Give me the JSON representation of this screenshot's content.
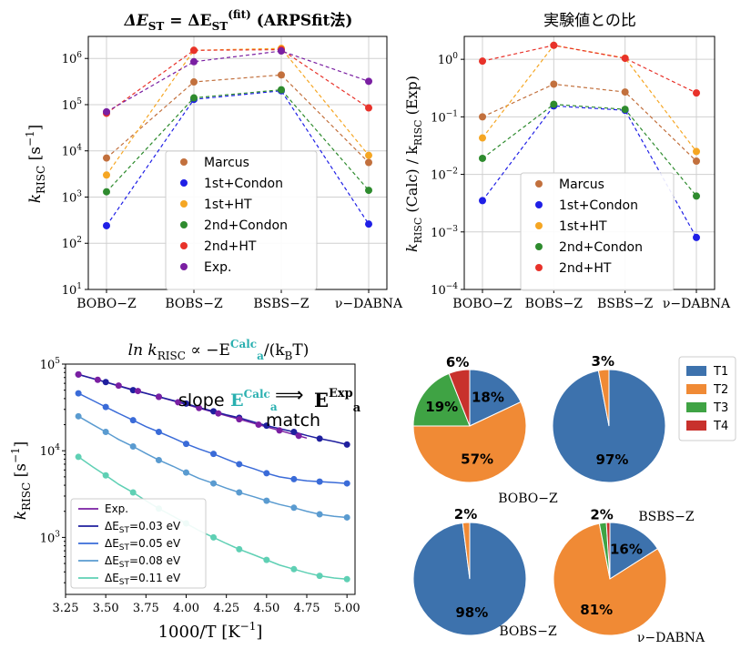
{
  "colors": {
    "Marcus": "#c2703d",
    "1st+Condon": "#1f1fe6",
    "1st+HT": "#f5a623",
    "2nd+Condon": "#2e8b2e",
    "2nd+HT": "#e8322a",
    "Exp.": "#7a1fa2",
    "T1": "#3d72ad",
    "T2": "#f08a35",
    "T3": "#3fa344",
    "T4": "#c8312c",
    "dE003": "#1f1f9e",
    "dE005": "#3a6bd8",
    "dE008": "#5a9bd0",
    "dE011": "#5fd0b4",
    "annot_slope": "#8a33e0",
    "annot_calc": "#2ab0b0",
    "annot_exp": "#e03030"
  },
  "chart_data": [
    {
      "type": "line",
      "title": {
        "prefix": "ΔE",
        "sub": "ST",
        "mid": " = ΔE",
        "sub2": "ST",
        "sup2": "(fit)",
        "suffix": " (ARPSfit法)"
      },
      "ylabel": {
        "main": "k",
        "sub": "RISC",
        "unit": " [s",
        "unit_sup": "−1",
        "unit_end": "]"
      },
      "yscale": "log",
      "ylim": [
        10,
        3000000
      ],
      "yticks": [
        {
          "v": 10,
          "b": "10",
          "e": "1"
        },
        {
          "v": 100,
          "b": "10",
          "e": "2"
        },
        {
          "v": 1000,
          "b": "10",
          "e": "3"
        },
        {
          "v": 10000,
          "b": "10",
          "e": "4"
        },
        {
          "v": 100000,
          "b": "10",
          "e": "5"
        },
        {
          "v": 1000000,
          "b": "10",
          "e": "6"
        }
      ],
      "categories": [
        "BOBO−Z",
        "BOBS−Z",
        "BSBS−Z",
        "ν−DABNA"
      ],
      "grid": true,
      "legend_position": "center",
      "series": [
        {
          "name": "Marcus",
          "values": [
            7000,
            310000,
            440000,
            5600
          ]
        },
        {
          "name": "1st+Condon",
          "values": [
            240,
            130000,
            200000,
            260
          ]
        },
        {
          "name": "1st+HT",
          "values": [
            3000,
            1500000,
            1650000,
            8000
          ]
        },
        {
          "name": "2nd+Condon",
          "values": [
            1300,
            140000,
            210000,
            1400
          ]
        },
        {
          "name": "2nd+HT",
          "values": [
            65000,
            1500000,
            1550000,
            85000
          ]
        },
        {
          "name": "Exp.",
          "values": [
            70000,
            850000,
            1450000,
            320000
          ]
        }
      ]
    },
    {
      "type": "line",
      "title": "実験値との比",
      "ylabel": {
        "main": "k",
        "sub": "RISC",
        "mid": " (Calc) / k",
        "sub2": "RISC",
        "end": " (Exp)"
      },
      "yscale": "log",
      "ylim": [
        0.0001,
        2.5
      ],
      "yticks": [
        {
          "v": 0.0001,
          "b": "10",
          "e": "−4"
        },
        {
          "v": 0.001,
          "b": "10",
          "e": "−3"
        },
        {
          "v": 0.01,
          "b": "10",
          "e": "−2"
        },
        {
          "v": 0.1,
          "b": "10",
          "e": "−1"
        },
        {
          "v": 1,
          "b": "10",
          "e": "0"
        }
      ],
      "categories": [
        "BOBO−Z",
        "BOBS−Z",
        "BSBS−Z",
        "ν−DABNA"
      ],
      "grid": true,
      "legend_position": "lower center",
      "series": [
        {
          "name": "Marcus",
          "values": [
            0.1,
            0.37,
            0.27,
            0.017
          ]
        },
        {
          "name": "1st+Condon",
          "values": [
            0.0035,
            0.155,
            0.13,
            0.0008
          ]
        },
        {
          "name": "1st+HT",
          "values": [
            0.043,
            1.75,
            1.05,
            0.025
          ]
        },
        {
          "name": "2nd+Condon",
          "values": [
            0.019,
            0.165,
            0.135,
            0.0042
          ]
        },
        {
          "name": "2nd+HT",
          "values": [
            0.93,
            1.75,
            1.04,
            0.26
          ]
        }
      ]
    },
    {
      "type": "line",
      "title": {
        "pre": "ln k",
        "sub": "RISC",
        "mid": " ∝ −E",
        "sup": "Calc",
        "sub2": "a",
        "post": "/(k",
        "sub3": "B",
        "end": "T)"
      },
      "xlabel": {
        "main": "1000/T [K",
        "sup": "−1",
        "end": "]"
      },
      "ylabel": {
        "main": "k",
        "sub": "RISC",
        "unit": " [s",
        "unit_sup": "−1",
        "unit_end": "]"
      },
      "yscale": "log",
      "xlim": [
        3.25,
        5.05
      ],
      "ylim": [
        220,
        100000
      ],
      "xticks": [
        "3.25",
        "3.50",
        "3.75",
        "4.00",
        "4.25",
        "4.50",
        "4.75",
        "5.00"
      ],
      "yticks": [
        {
          "v": 1000,
          "b": "10",
          "e": "3"
        },
        {
          "v": 10000,
          "b": "10",
          "e": "4"
        },
        {
          "v": 100000,
          "b": "10",
          "e": "5"
        }
      ],
      "legend_position": "lower left",
      "annotation": {
        "slope": "slope",
        "E": "E",
        "sup": "Calc",
        "sub": "a",
        "arrow": "⟹",
        "match": "match",
        "E2": "E",
        "sup2": "Exp",
        "sub2": "a"
      },
      "series": [
        {
          "name": "Exp.",
          "x": [
            3.33,
            4.75
          ],
          "y": [
            76000,
            14000
          ]
        },
        {
          "name": "ΔE",
          "sub": "ST",
          "value": "=0.03 eV",
          "x": [
            3.33,
            3.42,
            3.5,
            3.58,
            3.67,
            3.75,
            3.83,
            3.92,
            4.0,
            4.08,
            4.17,
            4.25,
            4.33,
            4.42,
            4.5,
            4.58,
            4.67,
            4.75,
            4.83,
            4.92,
            5.0
          ],
          "y": [
            76000,
            68000,
            62000,
            56000,
            50000,
            46000,
            42000,
            38000,
            35000,
            31500,
            28500,
            26000,
            24000,
            21500,
            19500,
            18000,
            16500,
            15000,
            13800,
            12800,
            11800
          ]
        },
        {
          "name": "ΔE",
          "sub": "ST",
          "value": "=0.05 eV",
          "x": [
            3.33,
            3.42,
            3.5,
            3.58,
            3.67,
            3.75,
            3.83,
            3.92,
            4.0,
            4.08,
            4.17,
            4.25,
            4.33,
            4.42,
            4.5,
            4.58,
            4.67,
            4.75,
            4.83,
            4.92,
            5.0
          ],
          "y": [
            46000,
            38000,
            32000,
            27000,
            22500,
            19000,
            16500,
            14000,
            12000,
            10500,
            9200,
            8000,
            7000,
            6200,
            5500,
            5000,
            4700,
            4500,
            4400,
            4300,
            4200
          ]
        },
        {
          "name": "ΔE",
          "sub": "ST",
          "value": "=0.08 eV",
          "x": [
            3.33,
            3.42,
            3.5,
            3.58,
            3.67,
            3.75,
            3.83,
            3.92,
            4.0,
            4.08,
            4.17,
            4.25,
            4.33,
            4.42,
            4.5,
            4.58,
            4.67,
            4.75,
            4.83,
            4.92,
            5.0
          ],
          "y": [
            25000,
            20000,
            16500,
            13500,
            11200,
            9300,
            7800,
            6600,
            5600,
            4800,
            4200,
            3700,
            3300,
            2950,
            2650,
            2400,
            2200,
            2000,
            1850,
            1750,
            1700
          ]
        },
        {
          "name": "ΔE",
          "sub": "ST",
          "value": "=0.11 eV",
          "x": [
            3.33,
            3.42,
            3.5,
            3.58,
            3.67,
            3.75,
            3.83,
            3.92,
            4.0,
            4.08,
            4.17,
            4.25,
            4.33,
            4.42,
            4.5,
            4.58,
            4.67,
            4.75,
            4.83,
            4.92,
            5.0
          ],
          "y": [
            8500,
            6500,
            5200,
            4100,
            3300,
            2650,
            2150,
            1750,
            1450,
            1200,
            1000,
            850,
            730,
            630,
            550,
            480,
            430,
            390,
            360,
            340,
            330
          ]
        }
      ]
    },
    {
      "type": "pie",
      "legend": [
        "T1",
        "T2",
        "T3",
        "T4"
      ],
      "legend_position": "top-right",
      "pies": [
        {
          "label": "BOBO−Z",
          "values": [
            18,
            57,
            19,
            6
          ],
          "labels": [
            "18%",
            "57%",
            "19%",
            "6%"
          ]
        },
        {
          "label": "BSBS−Z",
          "values": [
            97,
            3,
            0,
            0
          ],
          "labels": [
            "97%",
            "3%",
            "",
            ""
          ]
        },
        {
          "label": "BOBS−Z",
          "values": [
            98,
            2,
            0,
            0
          ],
          "labels": [
            "98%",
            "2%",
            "",
            ""
          ]
        },
        {
          "label": "ν−DABNA",
          "values": [
            16,
            81,
            2,
            1
          ],
          "labels": [
            "16%",
            "81%",
            "2%",
            ""
          ]
        }
      ]
    }
  ]
}
